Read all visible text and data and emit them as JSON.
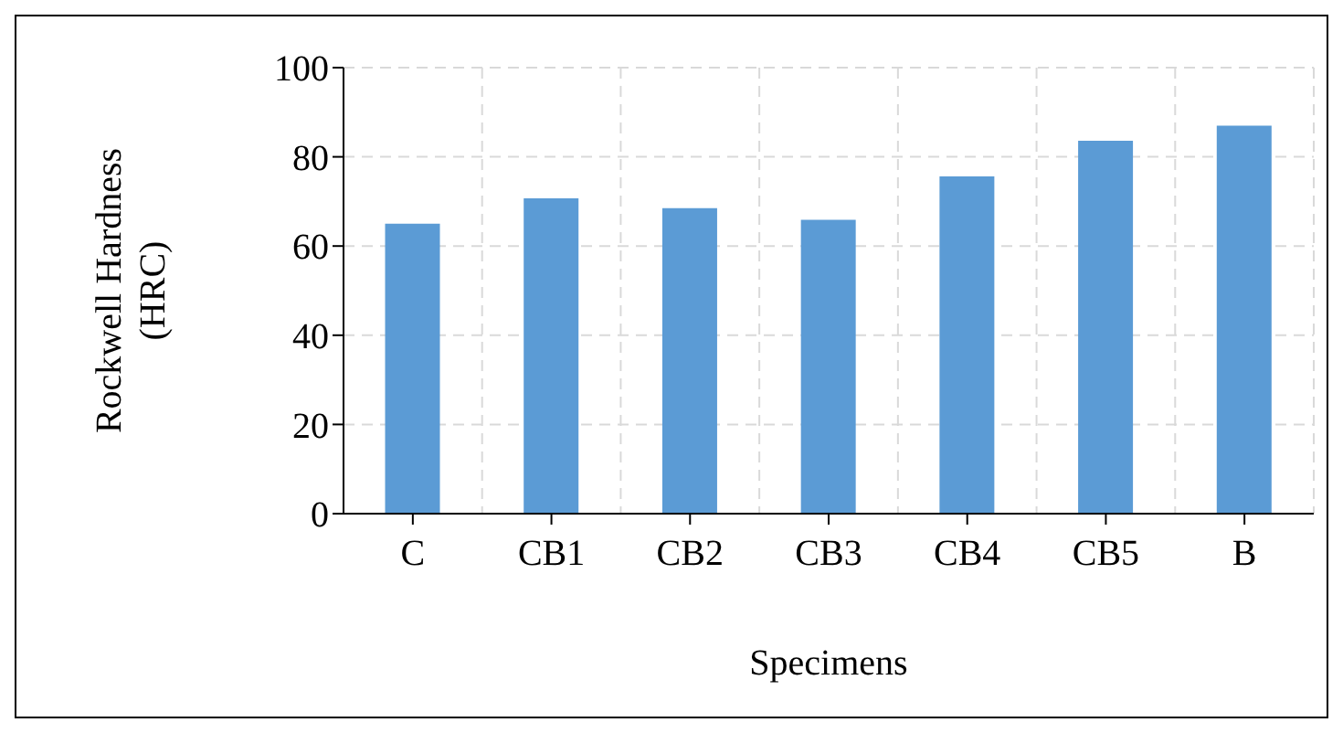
{
  "chart_data": {
    "type": "bar",
    "xlabel": "Specimens",
    "ylabel": "Rockwell Hardness (HRC)",
    "categories": [
      "C",
      "CB1",
      "CB2",
      "CB3",
      "CB4",
      "CB5",
      "B"
    ],
    "values": [
      65,
      70.7,
      68.5,
      65.9,
      75.6,
      83.6,
      87
    ],
    "color": "#5b9bd5",
    "ylim": [
      0,
      100
    ],
    "yticks": [
      0,
      20,
      40,
      60,
      80,
      100
    ],
    "grid": true,
    "legend": false
  }
}
